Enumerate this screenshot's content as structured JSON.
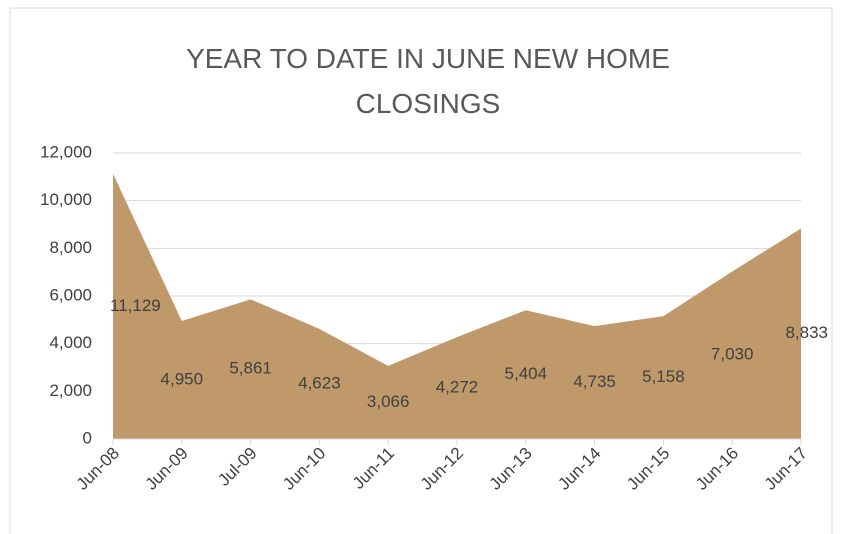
{
  "chart_data": {
    "type": "area",
    "title": "YEAR TO DATE IN JUNE NEW HOME CLOSINGS",
    "categories": [
      "Jun-08",
      "Jun-09",
      "Jul-09",
      "Jun-10",
      "Jun-11",
      "Jun-12",
      "Jun-13",
      "Jun-14",
      "Jun-15",
      "Jun-16",
      "Jun-17"
    ],
    "values": [
      11129,
      4950,
      5861,
      4623,
      3066,
      4272,
      5404,
      4735,
      5158,
      7030,
      8833
    ],
    "value_labels": [
      "11,129",
      "4,950",
      "5,861",
      "4,623",
      "3,066",
      "4,272",
      "5,404",
      "4,735",
      "5,158",
      "7,030",
      "8,833"
    ],
    "color": "#c0996b",
    "ylim": [
      0,
      12000
    ],
    "yticks": [
      0,
      {
        "value": 2000,
        "label": "2,000"
      },
      {
        "value": 4000,
        "label": "4,000"
      },
      {
        "value": 6000,
        "label": "6,000"
      },
      {
        "value": 8000,
        "label": "8,000"
      },
      {
        "value": 10000,
        "label": "10,000"
      },
      {
        "value": 12000,
        "label": "12,000"
      }
    ],
    "grid": true
  }
}
